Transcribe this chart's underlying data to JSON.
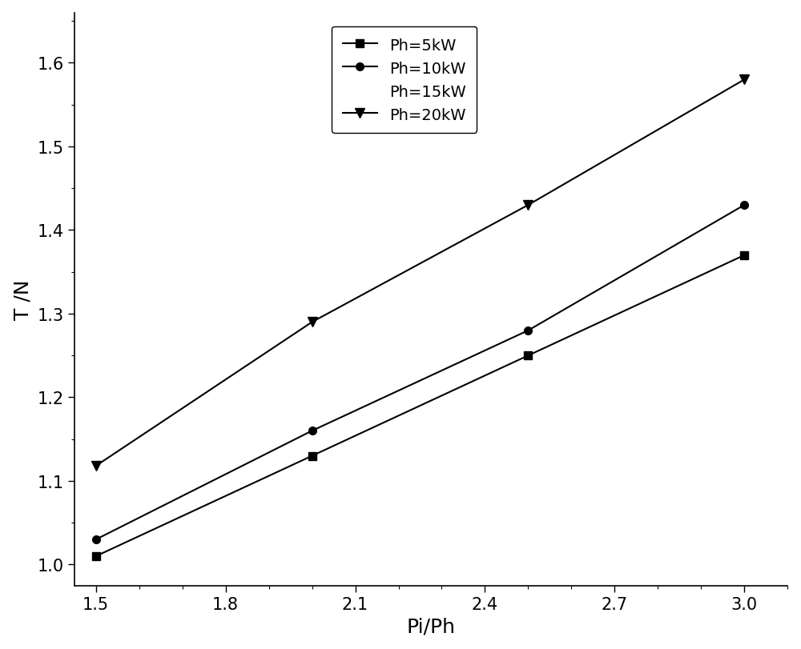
{
  "series": [
    {
      "label": "Ph=5kW",
      "x": [
        1.5,
        2.0,
        2.5,
        3.0
      ],
      "y": [
        1.01,
        1.13,
        1.25,
        1.37
      ],
      "marker": "s",
      "color": "#000000",
      "linewidth": 1.5,
      "markersize": 7
    },
    {
      "label": "Ph=10kW",
      "x": [
        1.5,
        2.0,
        2.5,
        3.0
      ],
      "y": [
        1.03,
        1.16,
        1.28,
        1.43
      ],
      "marker": "o",
      "color": "#000000",
      "linewidth": 1.5,
      "markersize": 7
    },
    {
      "label": "Ph=15kW",
      "x": [],
      "y": [],
      "marker": "None",
      "color": "#000000",
      "linewidth": 0,
      "markersize": 0
    },
    {
      "label": "Ph=20kW",
      "x": [
        1.5,
        2.0,
        2.5,
        3.0
      ],
      "y": [
        1.118,
        1.29,
        1.43,
        1.58
      ],
      "marker": "v",
      "color": "#000000",
      "linewidth": 1.5,
      "markersize": 8
    }
  ],
  "xlabel": "Pi/Ph",
  "ylabel": "T /N",
  "xlim": [
    1.45,
    3.1
  ],
  "ylim": [
    0.975,
    1.66
  ],
  "xticks": [
    1.5,
    1.8,
    2.1,
    2.4,
    2.7,
    3.0
  ],
  "yticks": [
    1.0,
    1.1,
    1.2,
    1.3,
    1.4,
    1.5,
    1.6
  ],
  "background_color": "#ffffff",
  "label_fontsize": 18,
  "tick_fontsize": 15,
  "legend_fontsize": 14
}
